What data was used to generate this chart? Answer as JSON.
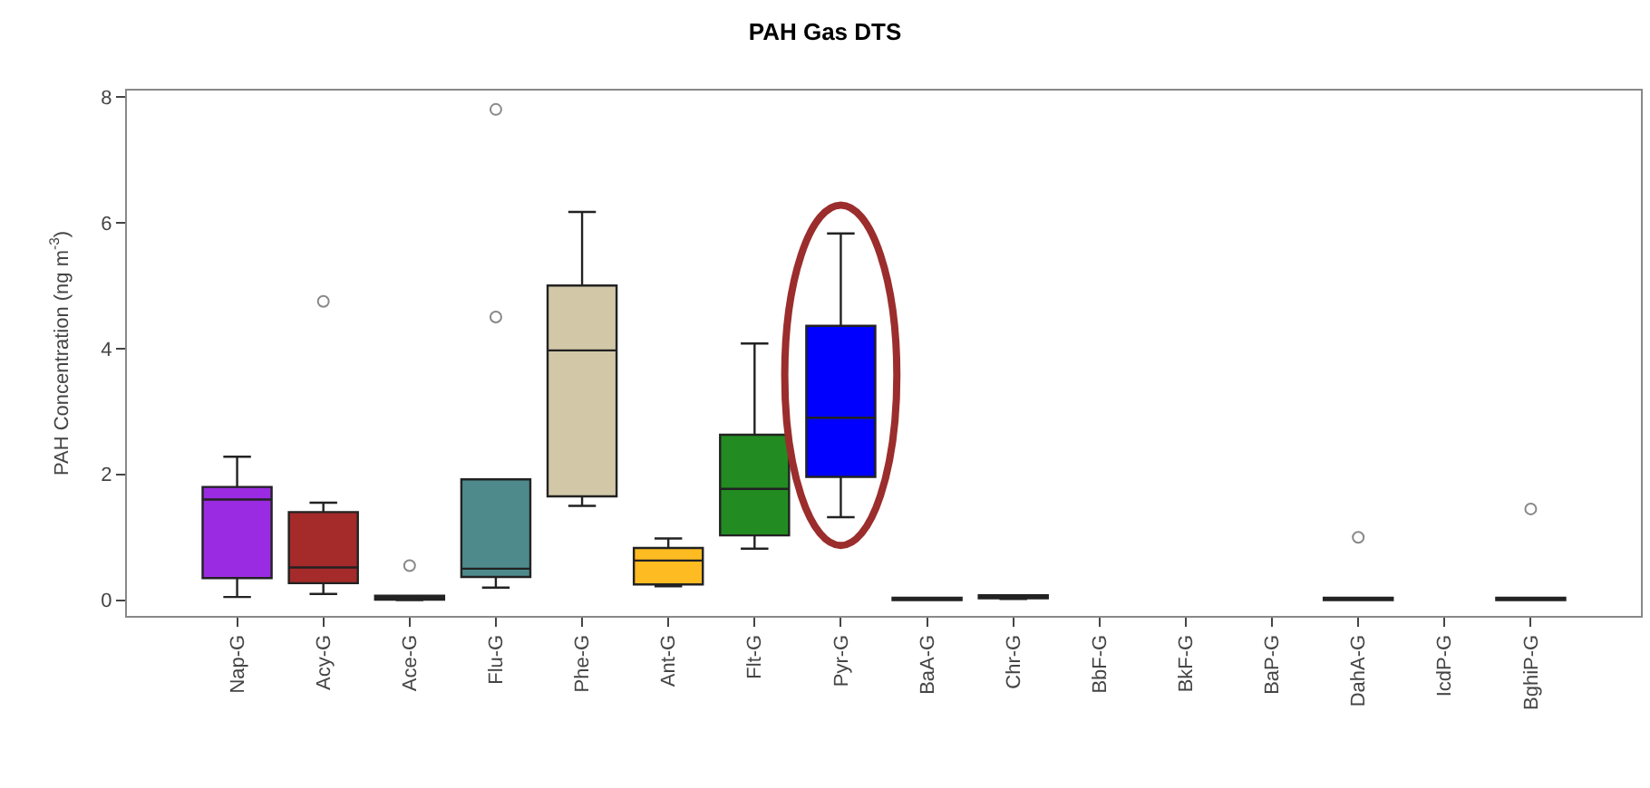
{
  "chart_data": {
    "type": "box",
    "title": "PAH Gas DTS",
    "ylabel": "PAH Concentration (ng m$^{-3}$)",
    "categories": [
      "Nap-G",
      "Acy-G",
      "Ace-G",
      "Flu-G",
      "Phe-G",
      "Ant-G",
      "Flt-G",
      "Pyr-G",
      "BaA-G",
      "Chr-G",
      "BbF-G",
      "BkF-G",
      "BaP-G",
      "DahA-G",
      "IcdP-G",
      "BghiP-G"
    ],
    "colors": [
      "#9a2be2",
      "#a52a2a",
      "#555555",
      "#4e8a8c",
      "#d2c8a8",
      "#ffbb22",
      "#228b22",
      "#0000ff",
      "#555555",
      "#555555",
      null,
      null,
      null,
      "#555555",
      null,
      "#555555"
    ],
    "boxes": [
      {
        "low": 0.05,
        "q1": 0.35,
        "median": 1.6,
        "q3": 1.8,
        "high": 2.28
      },
      {
        "low": 0.1,
        "q1": 0.27,
        "median": 0.52,
        "q3": 1.4,
        "high": 1.55,
        "outliers": [
          4.75
        ]
      },
      {
        "low": 0.0,
        "q1": 0.01,
        "median": 0.04,
        "q3": 0.07,
        "high": 0.07,
        "outliers": [
          0.55
        ]
      },
      {
        "low": 0.2,
        "q1": 0.37,
        "median": 0.5,
        "q3": 1.92,
        "high": 1.92,
        "outliers": [
          4.5,
          7.8
        ]
      },
      {
        "low": 1.5,
        "q1": 1.65,
        "median": 3.97,
        "q3": 5.0,
        "high": 6.17
      },
      {
        "low": 0.22,
        "q1": 0.25,
        "median": 0.63,
        "q3": 0.83,
        "high": 0.98
      },
      {
        "low": 0.82,
        "q1": 1.03,
        "median": 1.77,
        "q3": 2.63,
        "high": 4.08
      },
      {
        "low": 1.32,
        "q1": 1.96,
        "median": 2.9,
        "q3": 4.36,
        "high": 5.83
      },
      {
        "low": 0.0,
        "q1": 0.0,
        "median": 0.02,
        "q3": 0.04,
        "high": 0.04
      },
      {
        "low": 0.02,
        "q1": 0.03,
        "median": 0.06,
        "q3": 0.08,
        "high": 0.08
      },
      null,
      null,
      null,
      {
        "low": 0.0,
        "q1": 0.0,
        "median": 0.02,
        "q3": 0.04,
        "high": 0.04,
        "outliers": [
          1.0
        ]
      },
      null,
      {
        "low": 0.0,
        "q1": 0.0,
        "median": 0.02,
        "q3": 0.04,
        "high": 0.04,
        "outliers": [
          1.45
        ]
      }
    ],
    "ylim": [
      -0.25,
      8.1
    ],
    "yticks": [
      0,
      2,
      4,
      6,
      8
    ],
    "marker": "circle"
  }
}
